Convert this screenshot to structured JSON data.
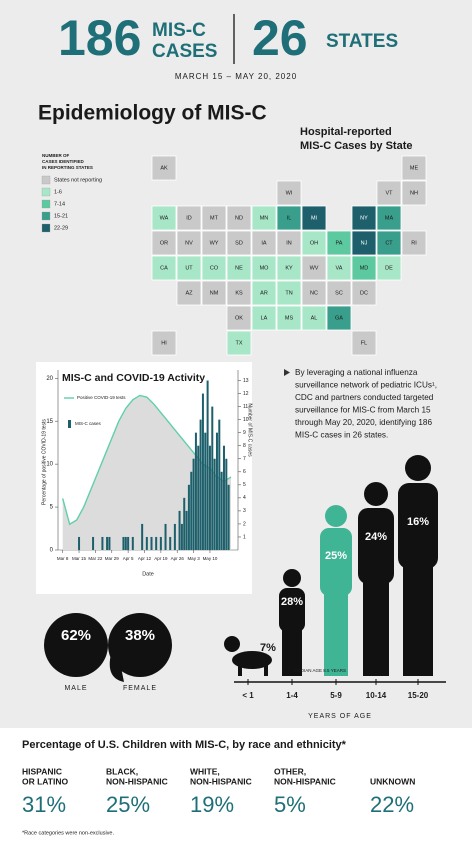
{
  "header": {
    "cases_number": "186",
    "cases_label_1": "MIS-C",
    "cases_label_2": "CASES",
    "states_number": "26",
    "states_label": "STATES",
    "dates": "MARCH 15 – MAY 20, 2020"
  },
  "section_title": "Epidemiology of MIS-C",
  "map": {
    "title_1": "Hospital-reported",
    "title_2": "MIS-C Cases by State",
    "legend_title": [
      "NUMBER OF",
      "CASES IDENTIFIED",
      "IN REPORTING STATES"
    ],
    "legend": [
      {
        "label": "States not reporting",
        "color": "#c9c9c9"
      },
      {
        "label": "1-6",
        "color": "#a8e6c8"
      },
      {
        "label": "7-14",
        "color": "#5cc9a0"
      },
      {
        "label": "15-21",
        "color": "#3a9e8c"
      },
      {
        "label": "22-29",
        "color": "#1d5f6b"
      }
    ],
    "states": [
      {
        "label": "AK",
        "cases": "States not reporting"
      },
      {
        "label": "ME",
        "cases": "States not reporting"
      },
      {
        "label": "WI",
        "cases": "States not reporting"
      },
      {
        "label": "VT",
        "cases": "States not reporting"
      },
      {
        "label": "NH",
        "cases": "States not reporting"
      },
      {
        "label": "WA",
        "cases": "1-6"
      },
      {
        "label": "ID",
        "cases": "States not reporting"
      },
      {
        "label": "MT",
        "cases": "States not reporting"
      },
      {
        "label": "ND",
        "cases": "States not reporting"
      },
      {
        "label": "MN",
        "cases": "1-6"
      },
      {
        "label": "IL",
        "cases": "15-21"
      },
      {
        "label": "MI",
        "cases": "22-29"
      },
      {
        "label": "NY",
        "cases": "22-29"
      },
      {
        "label": "MA",
        "cases": "15-21"
      },
      {
        "label": "OR",
        "cases": "States not reporting"
      },
      {
        "label": "NV",
        "cases": "States not reporting"
      },
      {
        "label": "WY",
        "cases": "States not reporting"
      },
      {
        "label": "SD",
        "cases": "States not reporting"
      },
      {
        "label": "IA",
        "cases": "States not reporting"
      },
      {
        "label": "IN",
        "cases": "States not reporting"
      },
      {
        "label": "OH",
        "cases": "1-6"
      },
      {
        "label": "PA",
        "cases": "7-14"
      },
      {
        "label": "NJ",
        "cases": "22-29"
      },
      {
        "label": "CT",
        "cases": "15-21"
      },
      {
        "label": "RI",
        "cases": "States not reporting"
      },
      {
        "label": "CA",
        "cases": "1-6"
      },
      {
        "label": "UT",
        "cases": "1-6"
      },
      {
        "label": "CO",
        "cases": "1-6"
      },
      {
        "label": "NE",
        "cases": "1-6"
      },
      {
        "label": "MO",
        "cases": "1-6"
      },
      {
        "label": "KY",
        "cases": "1-6"
      },
      {
        "label": "WV",
        "cases": "States not reporting"
      },
      {
        "label": "VA",
        "cases": "1-6"
      },
      {
        "label": "MD",
        "cases": "7-14"
      },
      {
        "label": "DE",
        "cases": "1-6"
      },
      {
        "label": "AZ",
        "cases": "States not reporting"
      },
      {
        "label": "NM",
        "cases": "States not reporting"
      },
      {
        "label": "KS",
        "cases": "States not reporting"
      },
      {
        "label": "AR",
        "cases": "1-6"
      },
      {
        "label": "TN",
        "cases": "1-6"
      },
      {
        "label": "NC",
        "cases": "States not reporting"
      },
      {
        "label": "SC",
        "cases": "States not reporting"
      },
      {
        "label": "DC",
        "cases": "States not reporting"
      },
      {
        "label": "OK",
        "cases": "States not reporting"
      },
      {
        "label": "LA",
        "cases": "1-6"
      },
      {
        "label": "MS",
        "cases": "1-6"
      },
      {
        "label": "AL",
        "cases": "1-6"
      },
      {
        "label": "GA",
        "cases": "15-21"
      },
      {
        "label": "HI",
        "cases": "States not reporting"
      },
      {
        "label": "TX",
        "cases": "1-6"
      },
      {
        "label": "FL",
        "cases": "States not reporting"
      }
    ]
  },
  "chart_data": {
    "type": "combo",
    "title": "MIS-C and COVID-19 Activity",
    "x_label": "Date",
    "y_label": "Percentage of positive COVID-19 tests",
    "y2_label": "Number of MIS-C cases",
    "xlim": [
      -2,
      75
    ],
    "xticks": [
      {
        "value": 0,
        "label": "Mar 8"
      },
      {
        "value": 7,
        "label": "Mar 15"
      },
      {
        "value": 14,
        "label": "Mar 22"
      },
      {
        "value": 21,
        "label": "Mar 29"
      },
      {
        "value": 28,
        "label": "Apr 5"
      },
      {
        "value": 35,
        "label": "Apr 12"
      },
      {
        "value": 42,
        "label": "Apr 19"
      },
      {
        "value": 49,
        "label": "Apr 26"
      },
      {
        "value": 56,
        "label": "May 3"
      },
      {
        "value": 63,
        "label": "May 10"
      }
    ],
    "ylim": [
      0,
      20.5
    ],
    "yticks": [
      0,
      5,
      10,
      15,
      20
    ],
    "y2lim": [
      0,
      13.5
    ],
    "y2ticks": [
      1,
      2,
      3,
      4,
      5,
      6,
      7,
      8,
      9,
      10,
      11,
      12,
      13
    ],
    "series": [
      {
        "name": "Positive COVID-19 tests",
        "type": "line",
        "color": "#5fd0a8",
        "x": [
          0,
          3,
          6,
          9,
          12,
          15,
          18,
          21,
          24,
          27,
          30,
          33,
          36,
          39,
          42,
          45,
          48,
          51,
          54,
          57,
          60,
          63,
          66,
          69,
          72
        ],
        "values": [
          6,
          3,
          3.5,
          5,
          7,
          9,
          11,
          13,
          15,
          16.5,
          17.5,
          18,
          17.8,
          17,
          16,
          15,
          14,
          13,
          12,
          11,
          10,
          9.5,
          8.5,
          8,
          8.5
        ]
      },
      {
        "name": "MIS-C cases",
        "type": "bar",
        "axis": "y2",
        "color": "#1d5f6b",
        "x": [
          7,
          13,
          17,
          19,
          20,
          26,
          27,
          28,
          30,
          34,
          36,
          38,
          40,
          42,
          44,
          46,
          48,
          50,
          51,
          52,
          53,
          54,
          55,
          56,
          57,
          58,
          59,
          60,
          61,
          62,
          63,
          64,
          65,
          66,
          67,
          68,
          69,
          70,
          71
        ],
        "values": [
          1,
          1,
          1,
          1,
          1,
          1,
          1,
          1,
          1,
          2,
          1,
          1,
          1,
          1,
          2,
          1,
          2,
          3,
          2,
          4,
          3,
          5,
          6,
          7,
          9,
          8,
          10,
          12,
          9,
          13,
          8,
          11,
          7,
          9,
          10,
          6,
          8,
          7,
          5
        ]
      }
    ]
  },
  "summary": [
    "By leveraging a national influenza",
    "surveillance network of pediatric ICUs¹,",
    "CDC and partners conducted targeted",
    "surveillance for MIS-C from March 15",
    "through May 20, 2020, identifying 186",
    "MIS-C cases in 26 states."
  ],
  "sex": [
    {
      "label": "MALE",
      "percent": "62%"
    },
    {
      "label": "FEMALE",
      "percent": "38%"
    }
  ],
  "age": {
    "median": "MEDIAN AGE 8.5 YEARS",
    "axis_label": "YEARS OF AGE",
    "groups": [
      {
        "label": "< 1",
        "percent": "7%"
      },
      {
        "label": "1-4",
        "percent": "28%"
      },
      {
        "label": "5-9",
        "percent": "25%"
      },
      {
        "label": "10-14",
        "percent": "24%"
      },
      {
        "label": "15-20",
        "percent": "16%"
      }
    ]
  },
  "race": {
    "title": "Percentage of U.S. Children with MIS-C, by race and ethnicity*",
    "groups": [
      {
        "label": [
          "HISPANIC",
          "OR LATINO"
        ],
        "percent": "31%"
      },
      {
        "label": [
          "BLACK,",
          "NON-HISPANIC"
        ],
        "percent": "25%"
      },
      {
        "label": [
          "WHITE,",
          "NON-HISPANIC"
        ],
        "percent": "19%"
      },
      {
        "label": [
          "OTHER,",
          "NON-HISPANIC"
        ],
        "percent": "5%"
      },
      {
        "label": [
          "UNKNOWN"
        ],
        "percent": "22%"
      }
    ],
    "footnote": "*Race categories were non-exclusive."
  }
}
